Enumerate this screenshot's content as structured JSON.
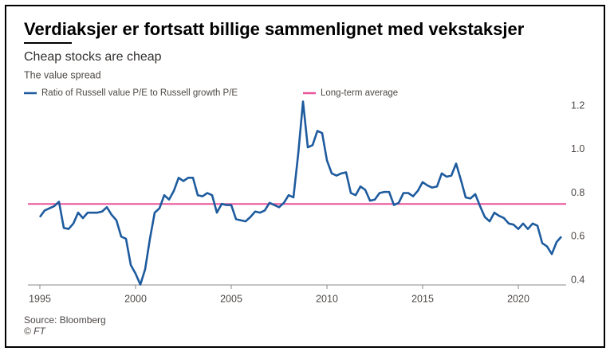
{
  "chart_data": {
    "type": "line",
    "title": "Verdiaksjer er fortsatt billige sammenlignet med vekstaksjer",
    "subtitle": "Cheap stocks are cheap",
    "y_label": "The value spread",
    "source": "Source: Bloomberg",
    "credit": "© FT",
    "x": [
      1995,
      1995.25,
      1995.5,
      1995.75,
      1996,
      1996.25,
      1996.5,
      1996.75,
      1997,
      1997.25,
      1997.5,
      1997.75,
      1998,
      1998.25,
      1998.5,
      1998.75,
      1999,
      1999.25,
      1999.5,
      1999.75,
      2000,
      2000.25,
      2000.5,
      2000.75,
      2001,
      2001.25,
      2001.5,
      2001.75,
      2002,
      2002.25,
      2002.5,
      2002.75,
      2003,
      2003.25,
      2003.5,
      2003.75,
      2004,
      2004.25,
      2004.5,
      2004.75,
      2005,
      2005.25,
      2005.5,
      2005.75,
      2006,
      2006.25,
      2006.5,
      2006.75,
      2007,
      2007.25,
      2007.5,
      2007.75,
      2008,
      2008.25,
      2008.5,
      2008.75,
      2009,
      2009.25,
      2009.5,
      2009.75,
      2010,
      2010.25,
      2010.5,
      2010.75,
      2011,
      2011.25,
      2011.5,
      2011.75,
      2012,
      2012.25,
      2012.5,
      2012.75,
      2013,
      2013.25,
      2013.5,
      2013.75,
      2014,
      2014.25,
      2014.5,
      2014.75,
      2015,
      2015.25,
      2015.5,
      2015.75,
      2016,
      2016.25,
      2016.5,
      2016.75,
      2017,
      2017.25,
      2017.5,
      2017.75,
      2018,
      2018.25,
      2018.5,
      2018.75,
      2019,
      2019.25,
      2019.5,
      2019.75,
      2020,
      2020.25,
      2020.5,
      2020.75,
      2021,
      2021.25,
      2021.5,
      2021.75,
      2022,
      2022.25
    ],
    "series": [
      {
        "name": "Ratio of Russell value P/E to Russell growth P/E",
        "color": "#1d5b9e",
        "values": [
          0.69,
          0.72,
          0.73,
          0.74,
          0.76,
          0.64,
          0.635,
          0.66,
          0.71,
          0.685,
          0.71,
          0.71,
          0.71,
          0.715,
          0.735,
          0.7,
          0.675,
          0.6,
          0.59,
          0.47,
          0.43,
          0.38,
          0.45,
          0.59,
          0.71,
          0.73,
          0.79,
          0.77,
          0.81,
          0.87,
          0.855,
          0.87,
          0.87,
          0.79,
          0.785,
          0.8,
          0.79,
          0.71,
          0.75,
          0.745,
          0.745,
          0.68,
          0.675,
          0.67,
          0.69,
          0.715,
          0.71,
          0.72,
          0.755,
          0.745,
          0.735,
          0.755,
          0.79,
          0.78,
          0.98,
          1.22,
          1.01,
          1.02,
          1.085,
          1.075,
          0.95,
          0.89,
          0.88,
          0.89,
          0.895,
          0.8,
          0.79,
          0.83,
          0.815,
          0.765,
          0.77,
          0.8,
          0.805,
          0.805,
          0.745,
          0.755,
          0.8,
          0.8,
          0.785,
          0.81,
          0.85,
          0.835,
          0.825,
          0.83,
          0.89,
          0.875,
          0.88,
          0.935,
          0.86,
          0.78,
          0.775,
          0.795,
          0.74,
          0.69,
          0.67,
          0.71,
          0.695,
          0.685,
          0.66,
          0.655,
          0.635,
          0.66,
          0.635,
          0.66,
          0.65,
          0.57,
          0.555,
          0.52,
          0.575,
          0.6
        ]
      }
    ],
    "average": {
      "name": "Long-term average",
      "value": 0.75,
      "color": "#e8559a"
    },
    "xlim": [
      1995,
      2022.5
    ],
    "xticks": [
      1995,
      2000,
      2005,
      2010,
      2015,
      2020
    ],
    "ylim": [
      0.4,
      1.2
    ],
    "yticks": [
      0.4,
      0.6,
      0.8,
      {
        "value": 1,
        "label": "1.0"
      },
      1.2
    ]
  }
}
